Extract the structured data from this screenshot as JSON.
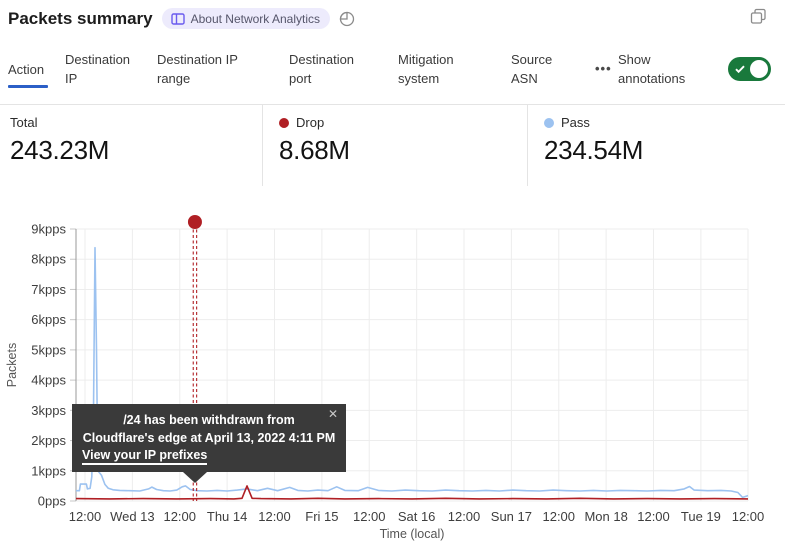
{
  "header": {
    "title": "Packets summary",
    "badge_label": "About Network Analytics"
  },
  "tabs": {
    "items": [
      {
        "label": "Action",
        "active": true
      },
      {
        "label": "Destination IP",
        "active": false
      },
      {
        "label": "Destination IP range",
        "active": false
      },
      {
        "label": "Destination port",
        "active": false
      },
      {
        "label": "Mitigation system",
        "active": false
      },
      {
        "label": "Source ASN",
        "active": false
      }
    ],
    "more_label": "...",
    "annotations_label": "Show annotations",
    "annotations_on": true,
    "toggle_color": "#19793c"
  },
  "stats": {
    "items": [
      {
        "label": "Total",
        "value": "243.23M",
        "dot": null
      },
      {
        "label": "Drop",
        "value": "8.68M",
        "dot": "#b01f24"
      },
      {
        "label": "Pass",
        "value": "234.54M",
        "dot": "#9cc2f0"
      }
    ]
  },
  "tooltip": {
    "message_lines": [
      "/24 has been withdrawn from",
      "Cloudflare's edge at April 13, 2022 4:11 PM"
    ],
    "link": "View your IP prefixes",
    "close": "✕"
  },
  "chart_data": {
    "type": "line",
    "ylabel": "Packets",
    "xlabel": "Time (local)",
    "ylim": [
      0,
      9
    ],
    "grid": true,
    "y_ticks": [
      {
        "label": "9kpps",
        "value": 9
      },
      {
        "label": "8kpps",
        "value": 8
      },
      {
        "label": "7kpps",
        "value": 7
      },
      {
        "label": "6kpps",
        "value": 6
      },
      {
        "label": "5kpps",
        "value": 5
      },
      {
        "label": "4kpps",
        "value": 4
      },
      {
        "label": "3kpps",
        "value": 3
      },
      {
        "label": "2kpps",
        "value": 2
      },
      {
        "label": "1kpps",
        "value": 1
      },
      {
        "label": "0pps",
        "value": 0
      }
    ],
    "x_ticks": [
      {
        "label": "12:00",
        "f": 0.0134
      },
      {
        "label": "Wed 13",
        "f": 0.0839
      },
      {
        "label": "12:00",
        "f": 0.1544
      },
      {
        "label": "Thu 14",
        "f": 0.2249
      },
      {
        "label": "12:00",
        "f": 0.2954
      },
      {
        "label": "Fri 15",
        "f": 0.3659
      },
      {
        "label": "12:00",
        "f": 0.4364
      },
      {
        "label": "Sat 16",
        "f": 0.5069
      },
      {
        "label": "12:00",
        "f": 0.5774
      },
      {
        "label": "Sun 17",
        "f": 0.6479
      },
      {
        "label": "12:00",
        "f": 0.7184
      },
      {
        "label": "Mon 18",
        "f": 0.7889
      },
      {
        "label": "12:00",
        "f": 0.8594
      },
      {
        "label": "Tue 19",
        "f": 0.9299
      },
      {
        "label": "12:00",
        "f": 1.0
      }
    ],
    "series": [
      {
        "name": "Pass",
        "color": "#9cc2f0",
        "points": [
          [
            0,
            0.34
          ],
          [
            0.005,
            0.34
          ],
          [
            0.0065,
            0.56
          ],
          [
            0.0155,
            0.56
          ],
          [
            0.017,
            0.4
          ],
          [
            0.021,
            0.42
          ],
          [
            0.0235,
            0.8
          ],
          [
            0.026,
            3.0
          ],
          [
            0.0283,
            8.38
          ],
          [
            0.0305,
            5.0
          ],
          [
            0.0325,
            1.0
          ],
          [
            0.038,
            0.85
          ],
          [
            0.043,
            0.55
          ],
          [
            0.048,
            0.42
          ],
          [
            0.055,
            0.37
          ],
          [
            0.065,
            0.35
          ],
          [
            0.08,
            0.34
          ],
          [
            0.095,
            0.33
          ],
          [
            0.108,
            0.4
          ],
          [
            0.113,
            0.46
          ],
          [
            0.12,
            0.38
          ],
          [
            0.13,
            0.34
          ],
          [
            0.14,
            0.33
          ],
          [
            0.15,
            0.36
          ],
          [
            0.158,
            0.47
          ],
          [
            0.163,
            0.5
          ],
          [
            0.17,
            0.38
          ],
          [
            0.18,
            0.34
          ],
          [
            0.195,
            0.33
          ],
          [
            0.21,
            0.35
          ],
          [
            0.225,
            0.33
          ],
          [
            0.24,
            0.36
          ],
          [
            0.2545,
            0.4
          ],
          [
            0.27,
            0.34
          ],
          [
            0.285,
            0.42
          ],
          [
            0.3,
            0.34
          ],
          [
            0.318,
            0.45
          ],
          [
            0.33,
            0.35
          ],
          [
            0.345,
            0.33
          ],
          [
            0.36,
            0.36
          ],
          [
            0.375,
            0.34
          ],
          [
            0.388,
            0.47
          ],
          [
            0.4,
            0.35
          ],
          [
            0.42,
            0.34
          ],
          [
            0.434,
            0.45
          ],
          [
            0.45,
            0.35
          ],
          [
            0.47,
            0.33
          ],
          [
            0.49,
            0.36
          ],
          [
            0.51,
            0.34
          ],
          [
            0.53,
            0.33
          ],
          [
            0.55,
            0.36
          ],
          [
            0.57,
            0.34
          ],
          [
            0.59,
            0.33
          ],
          [
            0.61,
            0.35
          ],
          [
            0.63,
            0.33
          ],
          [
            0.65,
            0.36
          ],
          [
            0.67,
            0.34
          ],
          [
            0.69,
            0.33
          ],
          [
            0.71,
            0.36
          ],
          [
            0.73,
            0.34
          ],
          [
            0.75,
            0.33
          ],
          [
            0.77,
            0.35
          ],
          [
            0.79,
            0.33
          ],
          [
            0.81,
            0.35
          ],
          [
            0.83,
            0.34
          ],
          [
            0.85,
            0.33
          ],
          [
            0.87,
            0.35
          ],
          [
            0.89,
            0.34
          ],
          [
            0.905,
            0.4
          ],
          [
            0.913,
            0.48
          ],
          [
            0.92,
            0.36
          ],
          [
            0.94,
            0.34
          ],
          [
            0.96,
            0.35
          ],
          [
            0.975,
            0.33
          ],
          [
            0.985,
            0.28
          ],
          [
            0.992,
            0.12
          ],
          [
            1,
            0.18
          ]
        ]
      },
      {
        "name": "Drop",
        "color": "#b01f24",
        "points": [
          [
            0,
            0.08
          ],
          [
            0.05,
            0.07
          ],
          [
            0.1,
            0.08
          ],
          [
            0.15,
            0.07
          ],
          [
            0.2,
            0.08
          ],
          [
            0.235,
            0.07
          ],
          [
            0.247,
            0.09
          ],
          [
            0.2545,
            0.5
          ],
          [
            0.262,
            0.09
          ],
          [
            0.275,
            0.08
          ],
          [
            0.32,
            0.07
          ],
          [
            0.36,
            0.09
          ],
          [
            0.4,
            0.07
          ],
          [
            0.45,
            0.08
          ],
          [
            0.5,
            0.07
          ],
          [
            0.55,
            0.09
          ],
          [
            0.6,
            0.07
          ],
          [
            0.65,
            0.08
          ],
          [
            0.7,
            0.07
          ],
          [
            0.75,
            0.09
          ],
          [
            0.8,
            0.07
          ],
          [
            0.85,
            0.08
          ],
          [
            0.9,
            0.07
          ],
          [
            0.95,
            0.08
          ],
          [
            1,
            0.07
          ]
        ]
      }
    ],
    "annotation": {
      "x_f": 0.177,
      "color": "#b01f24"
    }
  }
}
